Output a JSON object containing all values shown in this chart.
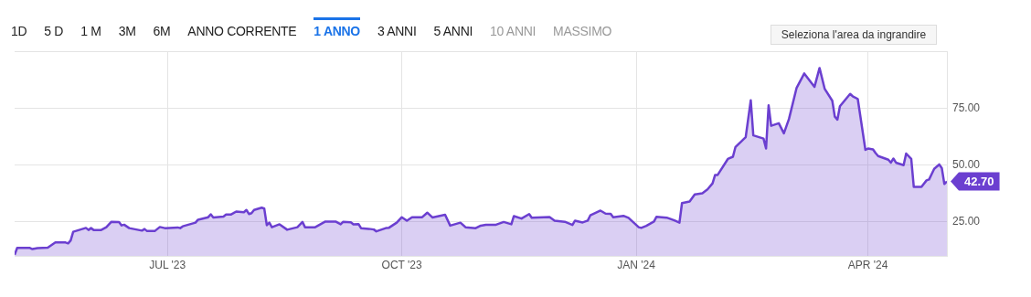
{
  "chart_data": {
    "type": "area",
    "x": [
      "2023-05-02",
      "2023-05-03",
      "2023-05-08",
      "2023-05-09",
      "2023-05-11",
      "2023-05-15",
      "2023-05-18",
      "2023-05-22",
      "2023-05-23",
      "2023-05-24",
      "2023-05-25",
      "2023-05-30",
      "2023-05-31",
      "2023-06-01",
      "2023-06-02",
      "2023-06-05",
      "2023-06-07",
      "2023-06-09",
      "2023-06-12",
      "2023-06-13",
      "2023-06-14",
      "2023-06-16",
      "2023-06-21",
      "2023-06-22",
      "2023-06-23",
      "2023-06-26",
      "2023-06-28",
      "2023-06-30",
      "2023-07-05",
      "2023-07-06",
      "2023-07-07",
      "2023-07-12",
      "2023-07-13",
      "2023-07-17",
      "2023-07-18",
      "2023-07-19",
      "2023-07-23",
      "2023-07-24",
      "2023-07-26",
      "2023-07-28",
      "2023-07-31",
      "2023-08-01",
      "2023-08-02",
      "2023-08-03",
      "2023-08-04",
      "2023-08-07",
      "2023-08-08",
      "2023-08-09",
      "2023-08-10",
      "2023-08-11",
      "2023-08-14",
      "2023-08-17",
      "2023-08-21",
      "2023-08-23",
      "2023-08-24",
      "2023-08-28",
      "2023-09-01",
      "2023-09-05",
      "2023-09-07",
      "2023-09-08",
      "2023-09-11",
      "2023-09-12",
      "2023-09-14",
      "2023-09-15",
      "2023-09-18",
      "2023-09-20",
      "2023-09-21",
      "2023-09-25",
      "2023-09-26",
      "2023-09-29",
      "2023-10-01",
      "2023-10-03",
      "2023-10-05",
      "2023-10-09",
      "2023-10-11",
      "2023-10-13",
      "2023-10-18",
      "2023-10-20",
      "2023-10-24",
      "2023-10-26",
      "2023-10-30",
      "2023-11-01",
      "2023-11-03",
      "2023-11-07",
      "2023-11-10",
      "2023-11-13",
      "2023-11-14",
      "2023-11-17",
      "2023-11-20",
      "2023-11-21",
      "2023-11-28",
      "2023-11-30",
      "2023-12-04",
      "2023-12-07",
      "2023-12-08",
      "2023-12-11",
      "2023-12-13",
      "2023-12-14",
      "2023-12-18",
      "2023-12-20",
      "2023-12-22",
      "2023-12-23",
      "2023-12-27",
      "2023-12-29",
      "2024-01-02",
      "2024-01-03",
      "2024-01-05",
      "2024-01-08",
      "2024-01-09",
      "2024-01-13",
      "2024-01-16",
      "2024-01-18",
      "2024-01-19",
      "2024-01-22",
      "2024-01-24",
      "2024-01-27",
      "2024-01-29",
      "2024-01-31",
      "2024-02-01",
      "2024-02-02",
      "2024-02-06",
      "2024-02-08",
      "2024-02-09",
      "2024-02-13",
      "2024-02-15",
      "2024-02-16",
      "2024-02-20",
      "2024-02-21",
      "2024-02-22",
      "2024-02-23",
      "2024-02-26",
      "2024-02-28",
      "2024-03-01",
      "2024-03-04",
      "2024-03-07",
      "2024-03-11",
      "2024-03-13",
      "2024-03-15",
      "2024-03-18",
      "2024-03-19",
      "2024-03-20",
      "2024-03-21",
      "2024-03-25",
      "2024-03-26",
      "2024-03-28",
      "2024-03-31",
      "2024-04-01",
      "2024-04-03",
      "2024-04-04",
      "2024-04-05",
      "2024-04-09",
      "2024-04-10",
      "2024-04-11",
      "2024-04-12",
      "2024-04-15",
      "2024-04-16",
      "2024-04-18",
      "2024-04-19",
      "2024-04-22",
      "2024-04-24",
      "2024-04-25",
      "2024-04-27",
      "2024-04-29",
      "2024-04-30",
      "2024-05-01",
      "2024-05-02"
    ],
    "series": [
      {
        "color": "#6b3fd0",
        "values": [
          10.5,
          13.5,
          13.5,
          13.0,
          13.4,
          13.6,
          15.9,
          15.9,
          15.5,
          16.8,
          20.6,
          22.3,
          21.4,
          22.2,
          21.4,
          21.4,
          22.6,
          25.0,
          24.9,
          23.4,
          23.7,
          22.2,
          21.1,
          21.8,
          20.9,
          20.9,
          22.7,
          22.2,
          22.5,
          22.2,
          23.0,
          24.6,
          25.9,
          27.0,
          28.3,
          26.9,
          27.3,
          28.2,
          28.2,
          29.5,
          29.2,
          30.2,
          28.4,
          28.8,
          30.2,
          31.2,
          30.8,
          23.5,
          24.6,
          22.6,
          23.9,
          21.5,
          22.6,
          24.9,
          22.6,
          22.6,
          25.1,
          25.1,
          23.9,
          25.0,
          24.8,
          23.9,
          24.0,
          22.2,
          21.9,
          21.6,
          20.8,
          22.3,
          22.4,
          24.6,
          27.0,
          25.5,
          27.0,
          27.0,
          29.0,
          26.9,
          28.1,
          23.3,
          24.6,
          22.6,
          22.2,
          23.3,
          23.7,
          23.7,
          24.9,
          23.9,
          27.5,
          26.4,
          28.4,
          26.8,
          27.1,
          25.5,
          25.0,
          23.6,
          25.5,
          24.7,
          25.5,
          27.8,
          29.9,
          28.6,
          28.5,
          27.0,
          27.6,
          26.7,
          22.6,
          22.3,
          23.2,
          25.1,
          27.2,
          26.8,
          25.6,
          24.6,
          33.2,
          33.9,
          37.0,
          37.5,
          39.2,
          41.9,
          45.6,
          45.6,
          52.6,
          53.6,
          57.9,
          62.2,
          78.4,
          63.0,
          61.6,
          57.2,
          76.2,
          67.2,
          68.3,
          63.9,
          70.2,
          83.9,
          90.2,
          84.3,
          92.6,
          83.5,
          78.2,
          71.2,
          69.9,
          75.8,
          81.2,
          80.2,
          79.0,
          56.6,
          57.2,
          56.8,
          55.2,
          53.9,
          52.3,
          51.0,
          52.8,
          51.0,
          49.9,
          55.0,
          52.6,
          40.3,
          40.3,
          43.2,
          43.6,
          48.3,
          50.2,
          48.6,
          41.6,
          42.7
        ]
      }
    ],
    "xlim": [
      "2023-05-02",
      "2024-05-02"
    ],
    "xticks": [
      {
        "value": "2023-07-01",
        "label": "JUL '23"
      },
      {
        "value": "2023-10-01",
        "label": "OCT '23"
      },
      {
        "value": "2024-01-01",
        "label": "JAN '24"
      },
      {
        "value": "2024-04-01",
        "label": "APR '24"
      }
    ],
    "ylim": [
      10,
      100
    ],
    "yticks": [
      {
        "value": 25,
        "label": "25.00"
      },
      {
        "value": 50,
        "label": "50.00"
      },
      {
        "value": 75,
        "label": "75.00"
      },
      {
        "value": 100,
        "label": null
      }
    ],
    "grid": true,
    "annotations": [
      "1D",
      "5 D",
      "1 M",
      "3M",
      "6M",
      "ANNO CORRENTE",
      "1 ANNO",
      "3 ANNI",
      "5 ANNI",
      "10 ANNI",
      "MASSIMO",
      "Seleziona l'area da ingrandire",
      {
        "text": "42.70",
        "x": "2024-05-02",
        "y": 42.7
      }
    ]
  }
}
